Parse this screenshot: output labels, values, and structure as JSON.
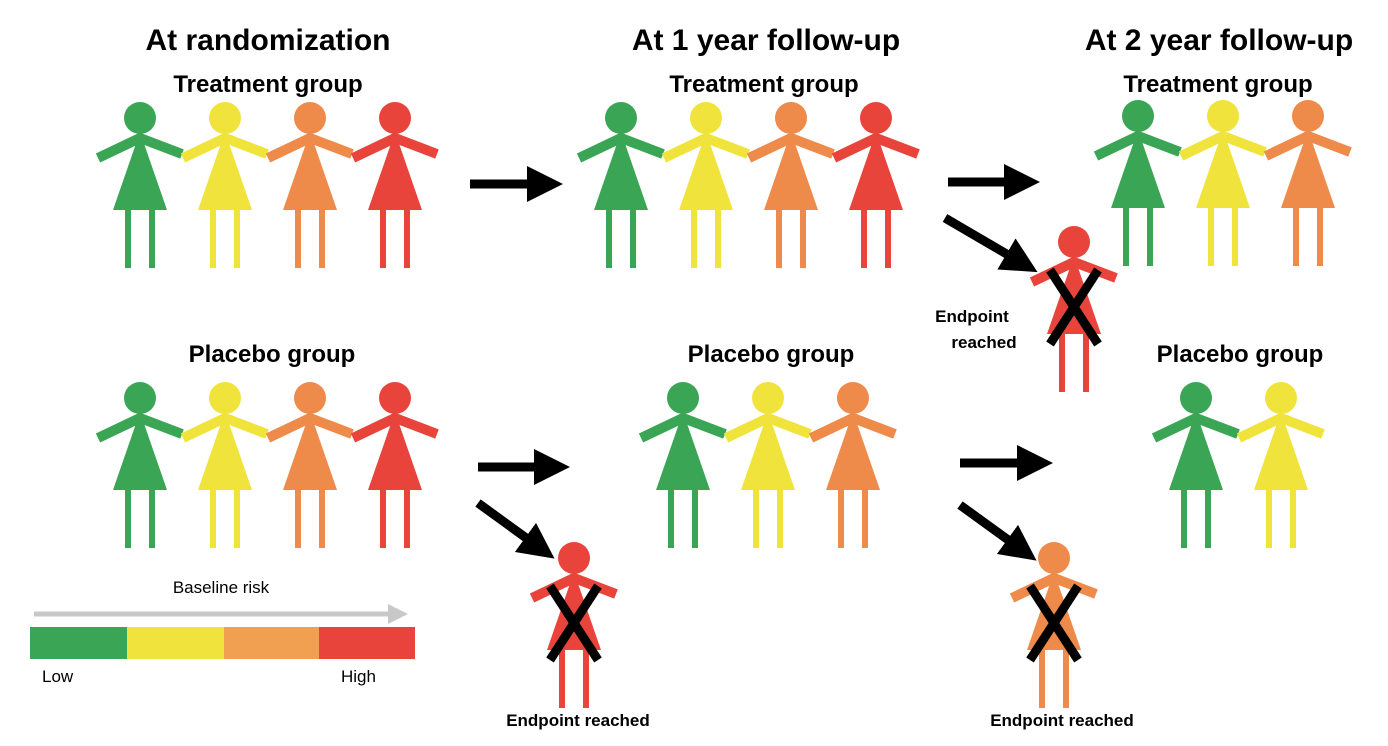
{
  "headers": {
    "randomization": "At randomization",
    "year1": "At 1 year follow-up",
    "year2": "At 2 year follow-up"
  },
  "group_labels": {
    "treatment": "Treatment group",
    "placebo": "Placebo group"
  },
  "endpoint_label": "Endpoint reached",
  "endpoint_label_split": [
    "Endpoint",
    "reached"
  ],
  "legend": {
    "title": "Baseline risk",
    "low": "Low",
    "high": "High",
    "colors": [
      "#3aa655",
      "#f0e43c",
      "#f0a050",
      "#e8443c"
    ]
  },
  "colors": {
    "green": "#3aa655",
    "yellow": "#f0e43c",
    "orange": "#ee8a4a",
    "red": "#e8443c"
  },
  "people": {
    "treatment_t0": [
      "green",
      "yellow",
      "orange",
      "red"
    ],
    "placebo_t0": [
      "green",
      "yellow",
      "orange",
      "red"
    ],
    "treatment_t1": [
      "green",
      "yellow",
      "orange",
      "red"
    ],
    "placebo_t1": [
      "green",
      "yellow",
      "orange"
    ],
    "treatment_t2": [
      "green",
      "yellow",
      "orange"
    ],
    "placebo_t2": [
      "green",
      "yellow"
    ],
    "endpoints": [
      "red",
      "red",
      "orange"
    ]
  }
}
